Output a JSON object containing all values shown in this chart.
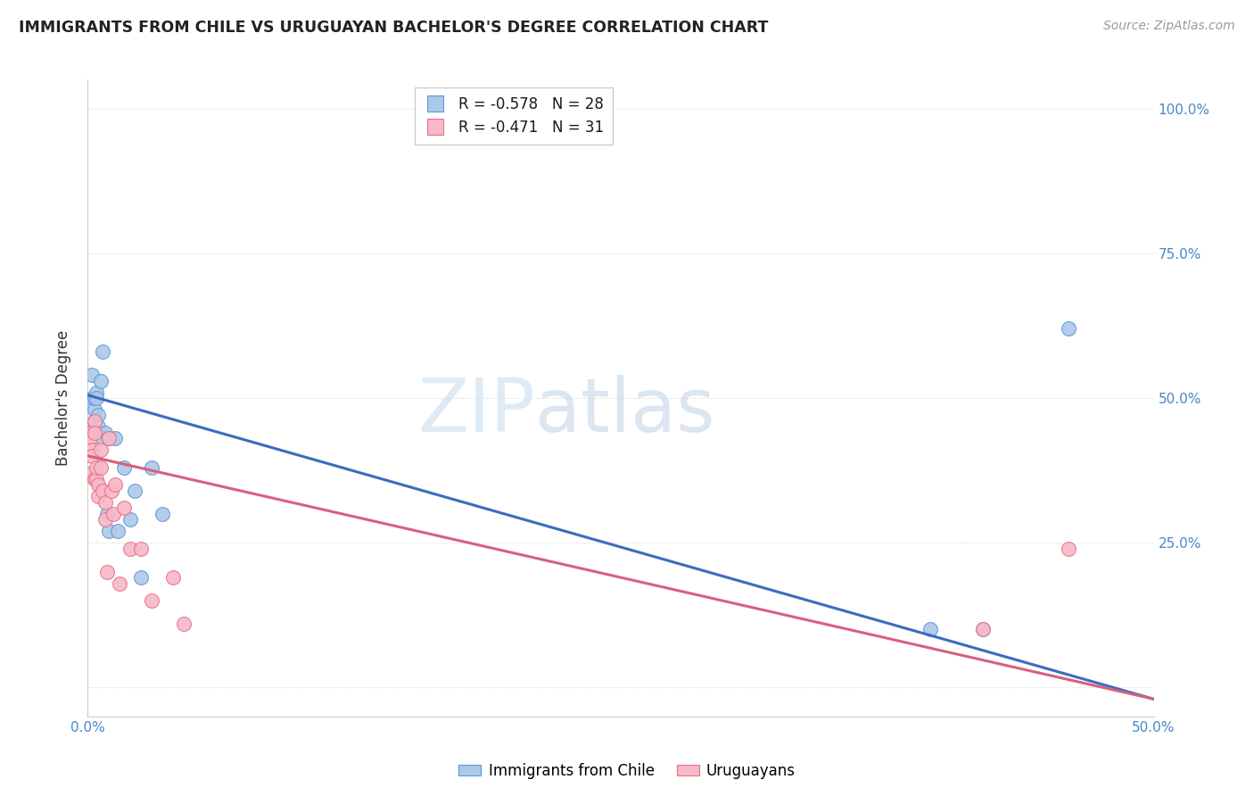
{
  "title": "IMMIGRANTS FROM CHILE VS URUGUAYAN BACHELOR'S DEGREE CORRELATION CHART",
  "source": "Source: ZipAtlas.com",
  "ylabel": "Bachelor's Degree",
  "right_yticks": [
    "100.0%",
    "75.0%",
    "50.0%",
    "25.0%"
  ],
  "right_ytick_vals": [
    1.0,
    0.75,
    0.5,
    0.25
  ],
  "legend_blue_r": "R = -0.578",
  "legend_blue_n": "N = 28",
  "legend_pink_r": "R = -0.471",
  "legend_pink_n": "N = 31",
  "blue_scatter_color": "#adc8e8",
  "blue_edge_color": "#5b9bd5",
  "pink_scatter_color": "#f7b8c8",
  "pink_edge_color": "#e8708a",
  "blue_line_color": "#3a6cc0",
  "pink_line_color": "#d95f7f",
  "watermark_zip": "ZIP",
  "watermark_atlas": "atlas",
  "blue_scatter_x": [
    0.001,
    0.002,
    0.002,
    0.003,
    0.003,
    0.003,
    0.004,
    0.004,
    0.005,
    0.005,
    0.006,
    0.007,
    0.007,
    0.008,
    0.009,
    0.01,
    0.01,
    0.013,
    0.014,
    0.017,
    0.02,
    0.022,
    0.025,
    0.03,
    0.035,
    0.395,
    0.42,
    0.46
  ],
  "blue_scatter_y": [
    0.44,
    0.5,
    0.54,
    0.48,
    0.5,
    0.46,
    0.51,
    0.5,
    0.47,
    0.45,
    0.53,
    0.43,
    0.58,
    0.44,
    0.3,
    0.43,
    0.27,
    0.43,
    0.27,
    0.38,
    0.29,
    0.34,
    0.19,
    0.38,
    0.3,
    0.1,
    0.1,
    0.62
  ],
  "pink_scatter_x": [
    0.001,
    0.001,
    0.002,
    0.002,
    0.002,
    0.003,
    0.003,
    0.003,
    0.004,
    0.004,
    0.005,
    0.005,
    0.006,
    0.006,
    0.007,
    0.008,
    0.008,
    0.009,
    0.01,
    0.011,
    0.012,
    0.013,
    0.015,
    0.017,
    0.02,
    0.025,
    0.03,
    0.04,
    0.045,
    0.42,
    0.46
  ],
  "pink_scatter_y": [
    0.44,
    0.43,
    0.41,
    0.4,
    0.37,
    0.46,
    0.44,
    0.36,
    0.36,
    0.38,
    0.35,
    0.33,
    0.41,
    0.38,
    0.34,
    0.29,
    0.32,
    0.2,
    0.43,
    0.34,
    0.3,
    0.35,
    0.18,
    0.31,
    0.24,
    0.24,
    0.15,
    0.19,
    0.11,
    0.1,
    0.24
  ],
  "blue_line_x": [
    0.0,
    0.5
  ],
  "blue_line_y": [
    0.505,
    -0.02
  ],
  "pink_line_x": [
    0.0,
    0.5
  ],
  "pink_line_y": [
    0.4,
    -0.02
  ],
  "xlim": [
    0.0,
    0.5
  ],
  "ylim": [
    -0.05,
    1.05
  ],
  "background_color": "#ffffff",
  "grid_color": "#d8d8d8",
  "tick_color": "#4a86c8"
}
